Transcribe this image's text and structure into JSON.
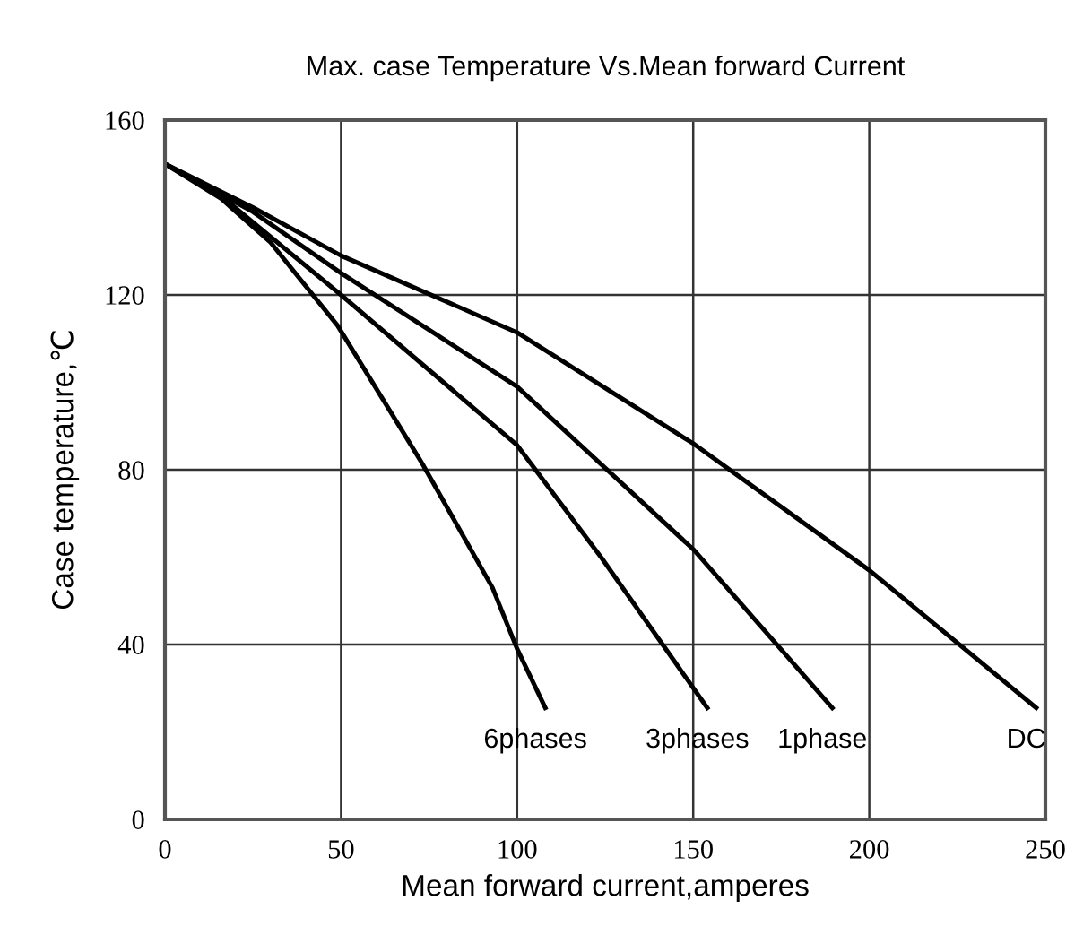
{
  "chart_data": {
    "type": "line",
    "title": "Max. case Temperature Vs.Mean forward Current",
    "xlabel": "Mean forward current,amperes",
    "ylabel": "Case temperature,℃",
    "xlim": [
      0,
      250
    ],
    "xticks": [
      0,
      50,
      100,
      150,
      200,
      250
    ],
    "ylim": [
      0,
      160
    ],
    "yticks": [
      0,
      40,
      80,
      120,
      160
    ],
    "grid": true,
    "legend": false,
    "marker": "none",
    "line_style": "solid",
    "series": [
      {
        "name": "6phases",
        "color": "#000000",
        "x": [
          0,
          16,
          30,
          49,
          73,
          93,
          100,
          108
        ],
        "values": [
          150,
          142,
          132,
          113,
          81.5,
          53,
          39,
          25.5
        ]
      },
      {
        "name": "3phases",
        "color": "#000000",
        "x": [
          0,
          16,
          50,
          100,
          124,
          154
        ],
        "values": [
          150,
          142.6,
          120,
          85.6,
          59.8,
          25.5
        ]
      },
      {
        "name": "1phase",
        "color": "#000000",
        "x": [
          0,
          25,
          50,
          100,
          150,
          189.5
        ],
        "values": [
          150,
          139,
          125,
          99,
          61.8,
          25.5
        ]
      },
      {
        "name": "DC",
        "color": "#000000",
        "x": [
          0,
          25,
          50,
          100,
          150,
          200,
          247.4
        ],
        "values": [
          150,
          140,
          129,
          111.4,
          86,
          57,
          25.5
        ]
      }
    ]
  }
}
